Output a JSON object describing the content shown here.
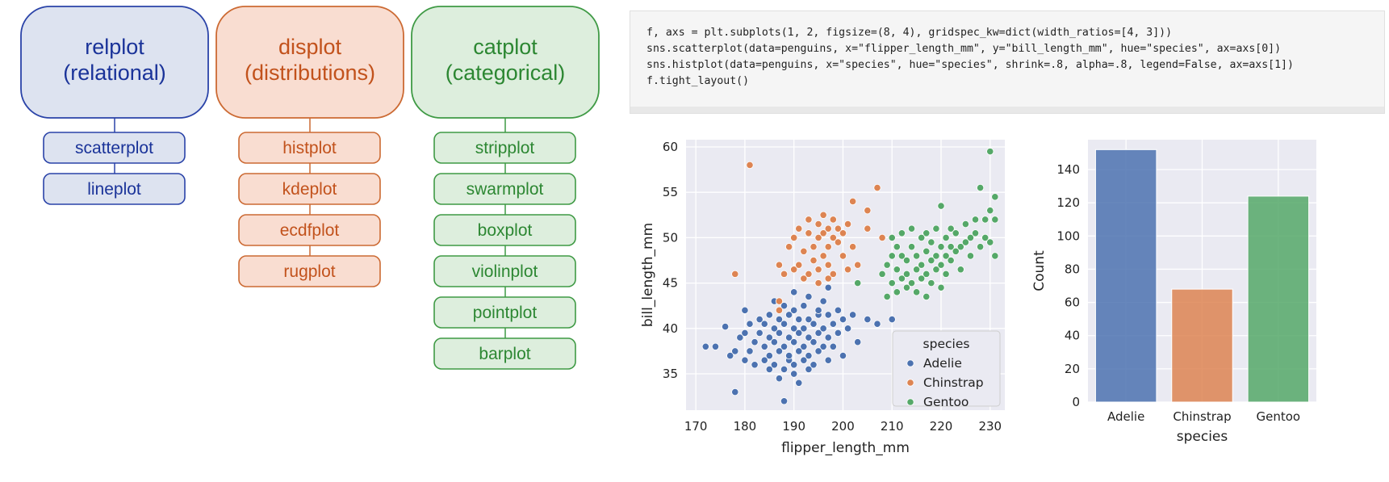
{
  "diagram": {
    "families": [
      {
        "label_lines": [
          "relplot",
          "(relational)"
        ],
        "stroke": "#2a43a8",
        "fill": "#dde3f0",
        "text": "#1a3399",
        "members": [
          "scatterplot",
          "lineplot"
        ]
      },
      {
        "label_lines": [
          "displot",
          "(distributions)"
        ],
        "stroke": "#cc6a33",
        "fill": "#f9ddd1",
        "text": "#c2521c",
        "members": [
          "histplot",
          "kdeplot",
          "ecdfplot",
          "rugplot"
        ]
      },
      {
        "label_lines": [
          "catplot",
          "(categorical)"
        ],
        "stroke": "#3f9a45",
        "fill": "#ddeedd",
        "text": "#2c8732",
        "members": [
          "stripplot",
          "swarmplot",
          "boxplot",
          "violinplot",
          "pointplot",
          "barplot"
        ]
      }
    ]
  },
  "code": {
    "lines": [
      "f, axs = plt.subplots(1, 2, figsize=(8, 4), gridspec_kw=dict(width_ratios=[4, 3]))",
      "sns.scatterplot(data=penguins, x=\"flipper_length_mm\", y=\"bill_length_mm\", hue=\"species\", ax=axs[0])",
      "sns.histplot(data=penguins, x=\"species\", hue=\"species\", shrink=.8, alpha=.8, legend=False, ax=axs[1])",
      "f.tight_layout()"
    ]
  },
  "chart_data": [
    {
      "type": "scatter",
      "xlabel": "flipper_length_mm",
      "ylabel": "bill_length_mm",
      "xlim": [
        168,
        233
      ],
      "ylim": [
        31,
        60.8
      ],
      "xticks": [
        170,
        180,
        190,
        200,
        210,
        220,
        230
      ],
      "yticks": [
        35,
        40,
        45,
        50,
        55,
        60
      ],
      "grid": true,
      "legend_title": "species",
      "legend_placement": "lower-right",
      "series": [
        {
          "name": "Adelie",
          "color": "#4c72b0",
          "points": [
            [
              172,
              38
            ],
            [
              174,
              38
            ],
            [
              176,
              40.2
            ],
            [
              177,
              37
            ],
            [
              178,
              33
            ],
            [
              178,
              37.5
            ],
            [
              179,
              39
            ],
            [
              180,
              36.5
            ],
            [
              180,
              39.5
            ],
            [
              180,
              42
            ],
            [
              181,
              37.5
            ],
            [
              181,
              40.5
            ],
            [
              182,
              36
            ],
            [
              182,
              38.5
            ],
            [
              183,
              41
            ],
            [
              183,
              39.5
            ],
            [
              184,
              36.5
            ],
            [
              184,
              38
            ],
            [
              184,
              40.5
            ],
            [
              185,
              37
            ],
            [
              185,
              39
            ],
            [
              185,
              41.5
            ],
            [
              185,
              35.5
            ],
            [
              186,
              38.5
            ],
            [
              186,
              36
            ],
            [
              186,
              40
            ],
            [
              186,
              43
            ],
            [
              187,
              37.5
            ],
            [
              187,
              34.5
            ],
            [
              187,
              39.5
            ],
            [
              187,
              41
            ],
            [
              188,
              35.5
            ],
            [
              188,
              38
            ],
            [
              188,
              40.5
            ],
            [
              188,
              32
            ],
            [
              188,
              42.5
            ],
            [
              189,
              36.5
            ],
            [
              189,
              39
            ],
            [
              189,
              37
            ],
            [
              189,
              41.5
            ],
            [
              190,
              35
            ],
            [
              190,
              38.5
            ],
            [
              190,
              40
            ],
            [
              190,
              42
            ],
            [
              190,
              36
            ],
            [
              190,
              44
            ],
            [
              191,
              37.5
            ],
            [
              191,
              39.5
            ],
            [
              191,
              41
            ],
            [
              191,
              34
            ],
            [
              192,
              36.5
            ],
            [
              192,
              38
            ],
            [
              192,
              40
            ],
            [
              192,
              42.5
            ],
            [
              193,
              35.5
            ],
            [
              193,
              39
            ],
            [
              193,
              41
            ],
            [
              193,
              37
            ],
            [
              193,
              43.5
            ],
            [
              194,
              38.5
            ],
            [
              194,
              40.5
            ],
            [
              194,
              36
            ],
            [
              195,
              37.5
            ],
            [
              195,
              39.5
            ],
            [
              195,
              41.5
            ],
            [
              195,
              42
            ],
            [
              196,
              38
            ],
            [
              196,
              40
            ],
            [
              196,
              43
            ],
            [
              197,
              36.5
            ],
            [
              197,
              39
            ],
            [
              197,
              41.5
            ],
            [
              197,
              44.5
            ],
            [
              198,
              40.5
            ],
            [
              198,
              38
            ],
            [
              199,
              42
            ],
            [
              199,
              39.5
            ],
            [
              200,
              37
            ],
            [
              200,
              41
            ],
            [
              201,
              40
            ],
            [
              202,
              41.5
            ],
            [
              203,
              38.5
            ],
            [
              205,
              41
            ],
            [
              207,
              40.5
            ],
            [
              210,
              41
            ]
          ]
        },
        {
          "name": "Chinstrap",
          "color": "#dd8452",
          "points": [
            [
              178,
              46
            ],
            [
              181,
              58
            ],
            [
              187,
              47
            ],
            [
              187,
              43
            ],
            [
              187,
              42
            ],
            [
              188,
              46
            ],
            [
              189,
              49
            ],
            [
              190,
              46.5
            ],
            [
              190,
              50
            ],
            [
              191,
              47
            ],
            [
              191,
              51
            ],
            [
              192,
              45.5
            ],
            [
              192,
              48.5
            ],
            [
              193,
              46
            ],
            [
              193,
              50.5
            ],
            [
              193,
              52
            ],
            [
              194,
              47.5
            ],
            [
              194,
              49
            ],
            [
              195,
              45
            ],
            [
              195,
              50
            ],
            [
              195,
              51.5
            ],
            [
              195,
              46.5
            ],
            [
              196,
              48
            ],
            [
              196,
              50.5
            ],
            [
              196,
              52.5
            ],
            [
              197,
              45.5
            ],
            [
              197,
              49
            ],
            [
              197,
              51
            ],
            [
              197,
              47
            ],
            [
              198,
              50
            ],
            [
              198,
              52
            ],
            [
              198,
              46
            ],
            [
              199,
              49.5
            ],
            [
              199,
              51
            ],
            [
              200,
              48
            ],
            [
              200,
              50.5
            ],
            [
              201,
              46.5
            ],
            [
              201,
              51.5
            ],
            [
              202,
              49
            ],
            [
              202,
              54
            ],
            [
              203,
              47
            ],
            [
              205,
              51
            ],
            [
              205,
              53
            ],
            [
              207,
              55.5
            ],
            [
              208,
              50
            ]
          ]
        },
        {
          "name": "Gentoo",
          "color": "#55a868",
          "points": [
            [
              203,
              45
            ],
            [
              208,
              46
            ],
            [
              209,
              43.5
            ],
            [
              209,
              47
            ],
            [
              210,
              45
            ],
            [
              210,
              48
            ],
            [
              210,
              50
            ],
            [
              211,
              46.5
            ],
            [
              211,
              44
            ],
            [
              211,
              49
            ],
            [
              212,
              45.5
            ],
            [
              212,
              48
            ],
            [
              212,
              50.5
            ],
            [
              213,
              46
            ],
            [
              213,
              47.5
            ],
            [
              213,
              44.5
            ],
            [
              214,
              45
            ],
            [
              214,
              49
            ],
            [
              214,
              51
            ],
            [
              215,
              46.5
            ],
            [
              215,
              44
            ],
            [
              215,
              48
            ],
            [
              216,
              47
            ],
            [
              216,
              50
            ],
            [
              216,
              45.5
            ],
            [
              217,
              46
            ],
            [
              217,
              48.5
            ],
            [
              217,
              50.5
            ],
            [
              217,
              43.5
            ],
            [
              218,
              47.5
            ],
            [
              218,
              49.5
            ],
            [
              218,
              45
            ],
            [
              219,
              46.5
            ],
            [
              219,
              48
            ],
            [
              219,
              51
            ],
            [
              220,
              47
            ],
            [
              220,
              49
            ],
            [
              220,
              53.5
            ],
            [
              220,
              44.5
            ],
            [
              221,
              48
            ],
            [
              221,
              50
            ],
            [
              221,
              46
            ],
            [
              222,
              49
            ],
            [
              222,
              51
            ],
            [
              222,
              47.5
            ],
            [
              223,
              48.5
            ],
            [
              223,
              50.5
            ],
            [
              224,
              49
            ],
            [
              224,
              46.5
            ],
            [
              225,
              49.5
            ],
            [
              225,
              51.5
            ],
            [
              226,
              50
            ],
            [
              226,
              48
            ],
            [
              227,
              50.5
            ],
            [
              227,
              52
            ],
            [
              228,
              49
            ],
            [
              228,
              55.5
            ],
            [
              229,
              50
            ],
            [
              229,
              52
            ],
            [
              230,
              49.5
            ],
            [
              230,
              53
            ],
            [
              230,
              59.5
            ],
            [
              231,
              52
            ],
            [
              231,
              54.5
            ],
            [
              231,
              48
            ]
          ]
        }
      ]
    },
    {
      "type": "bar",
      "xlabel": "species",
      "ylabel": "Count",
      "categories": [
        "Adelie",
        "Chinstrap",
        "Gentoo"
      ],
      "values": [
        152,
        68,
        124
      ],
      "colors": [
        "#4c72b0",
        "#dd8452",
        "#55a868"
      ],
      "ylim": [
        0,
        158
      ],
      "yticks": [
        0,
        20,
        40,
        60,
        80,
        100,
        120,
        140
      ],
      "grid": true
    }
  ]
}
